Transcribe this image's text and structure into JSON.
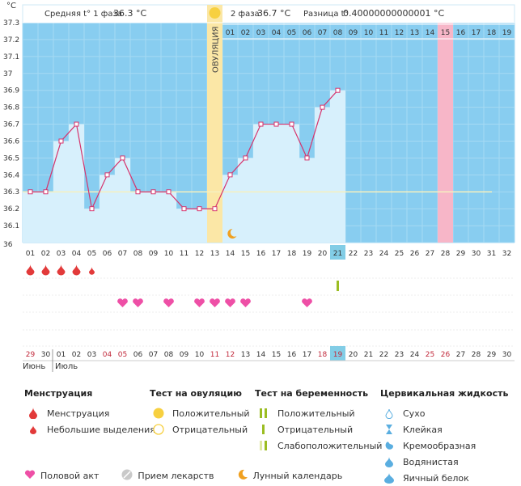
{
  "unit_label": "°C",
  "header": {
    "phase1_prefix": "Средняя t° 1 фаза",
    "phase1_value": "36.3 °C",
    "phase2_prefix": "2 фаза",
    "phase2_value": "36.7 °C",
    "diff_prefix": "Разница t°",
    "diff_value": "0.40000000000001 °C"
  },
  "ovulation_label": "ОВУЛЯЦИЯ",
  "colors": {
    "plot_bg": "#88cdf0",
    "bar_fill": "#d7f0fc",
    "line": "#d6336c",
    "ovulation": "#fbe7a6",
    "highlight_pink": "#f7b6c8",
    "today": "#82cde6",
    "cover_line": "#f5f0c0",
    "text_dark": "#333333",
    "text_red": "#c22a3c"
  },
  "chart_data": {
    "type": "line",
    "ylabel": "°C",
    "ylim": [
      36.0,
      37.3
    ],
    "y_ticks": [
      "37.3",
      "37.2",
      "37.1",
      "37",
      "36.9",
      "36.8",
      "36.7",
      "36.6",
      "36.5",
      "36.4",
      "36.3",
      "36.2",
      "36.1",
      "36"
    ],
    "x": [
      "01",
      "02",
      "03",
      "04",
      "05",
      "06",
      "07",
      "08",
      "09",
      "10",
      "11",
      "12",
      "13",
      "14",
      "15",
      "16",
      "17",
      "18",
      "19",
      "20",
      "21"
    ],
    "values": [
      36.3,
      36.3,
      36.6,
      36.7,
      36.2,
      36.4,
      36.5,
      36.3,
      36.3,
      36.3,
      36.2,
      36.2,
      36.2,
      36.4,
      36.5,
      36.7,
      36.7,
      36.7,
      36.5,
      36.8,
      36.9
    ],
    "cycle_days": [
      "01",
      "02",
      "03",
      "04",
      "05",
      "06",
      "07",
      "08",
      "09",
      "10",
      "11",
      "12",
      "13",
      "14",
      "15",
      "16",
      "17",
      "18",
      "19",
      "20",
      "21",
      "22",
      "23",
      "24",
      "25",
      "26",
      "27",
      "28",
      "29",
      "30",
      "31",
      "32"
    ],
    "phase2_top_labels": [
      "01",
      "02",
      "03",
      "04",
      "05",
      "06",
      "07",
      "08",
      "09",
      "10",
      "11",
      "12",
      "13",
      "14",
      "15",
      "16",
      "17",
      "18",
      "19"
    ],
    "ovulation_day_index": 12,
    "highlight_day_index": 27,
    "today_day_index": 20,
    "cover_line": 36.3,
    "calendar_dates": [
      "29",
      "30",
      "01",
      "02",
      "03",
      "04",
      "05",
      "06",
      "07",
      "08",
      "09",
      "10",
      "11",
      "12",
      "13",
      "14",
      "15",
      "16",
      "17",
      "18",
      "19",
      "20",
      "21",
      "22",
      "23",
      "24",
      "25",
      "26",
      "27",
      "28",
      "29",
      "30"
    ],
    "weekend_date_indices": [
      0,
      5,
      6,
      12,
      13,
      19,
      20,
      26,
      27
    ],
    "month_labels": [
      "Июнь",
      "Июль"
    ],
    "menstruation_large_days": [
      0,
      1,
      2,
      3
    ],
    "menstruation_small_days": [
      4
    ],
    "intercourse_days": [
      6,
      7,
      9,
      11,
      12,
      13,
      14,
      18
    ],
    "pregnancy_test_positive_day": 20,
    "moon_day": 13
  },
  "legend": {
    "menstruation": {
      "title": "Менструация",
      "items": [
        "Менструация",
        "Небольшие выделения"
      ]
    },
    "ovulation_test": {
      "title": "Тест на овуляцию",
      "items": [
        "Положительный",
        "Отрицательный"
      ]
    },
    "pregnancy_test": {
      "title": "Тест на беременность",
      "items": [
        "Положительный",
        "Отрицательный",
        "Слабоположительный"
      ]
    },
    "cervical": {
      "title": "Цервикальная жидкость",
      "items": [
        "Сухо",
        "Клейкая",
        "Кремообразная",
        "Водянистая",
        "Яичный белок"
      ]
    },
    "bottom": [
      "Половой акт",
      "Прием лекарств",
      "Лунный календарь"
    ]
  }
}
